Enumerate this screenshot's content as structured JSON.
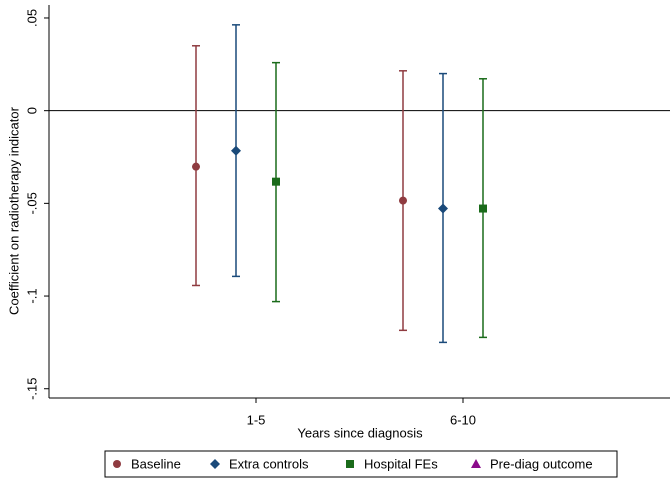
{
  "chart_data": {
    "type": "errorbar",
    "ylabel": "Coefficient on radiotherapy indicator",
    "xlabel": "Years since diagnosis",
    "categories": [
      "1-5",
      "6-10"
    ],
    "ylim": [
      -0.155,
      0.057
    ],
    "yticks": [
      {
        "value": 0.05,
        "label": ".05"
      },
      0,
      {
        "value": -0.05,
        "label": "-.05"
      },
      {
        "value": -0.1,
        "label": "-.1"
      },
      {
        "value": -0.15,
        "label": "-.15"
      }
    ],
    "reference_line": 0,
    "series": [
      {
        "name": "Baseline",
        "color": "#8f3b40",
        "marker": "circle",
        "values": [
          -0.0302,
          -0.0485
        ],
        "lower": [
          -0.0943,
          -0.1185
        ],
        "upper": [
          0.035,
          0.0215
        ]
      },
      {
        "name": "Extra controls",
        "color": "#1a4a7a",
        "marker": "diamond",
        "values": [
          -0.0216,
          -0.0528
        ],
        "lower": [
          -0.0894,
          -0.125
        ],
        "upper": [
          0.0463,
          0.02
        ]
      },
      {
        "name": "Hospital FEs",
        "color": "#1a6b1a",
        "marker": "square",
        "values": [
          -0.0383,
          -0.0528
        ],
        "lower": [
          -0.103,
          -0.1223
        ],
        "upper": [
          0.0259,
          0.0172
        ]
      },
      {
        "name": "Pre-diag outcome",
        "color": "#8b0a8b",
        "marker": "triangle",
        "values": [
          null,
          null
        ],
        "lower": [
          null,
          null
        ],
        "upper": [
          null,
          null
        ]
      }
    ],
    "legend": "bottom"
  }
}
